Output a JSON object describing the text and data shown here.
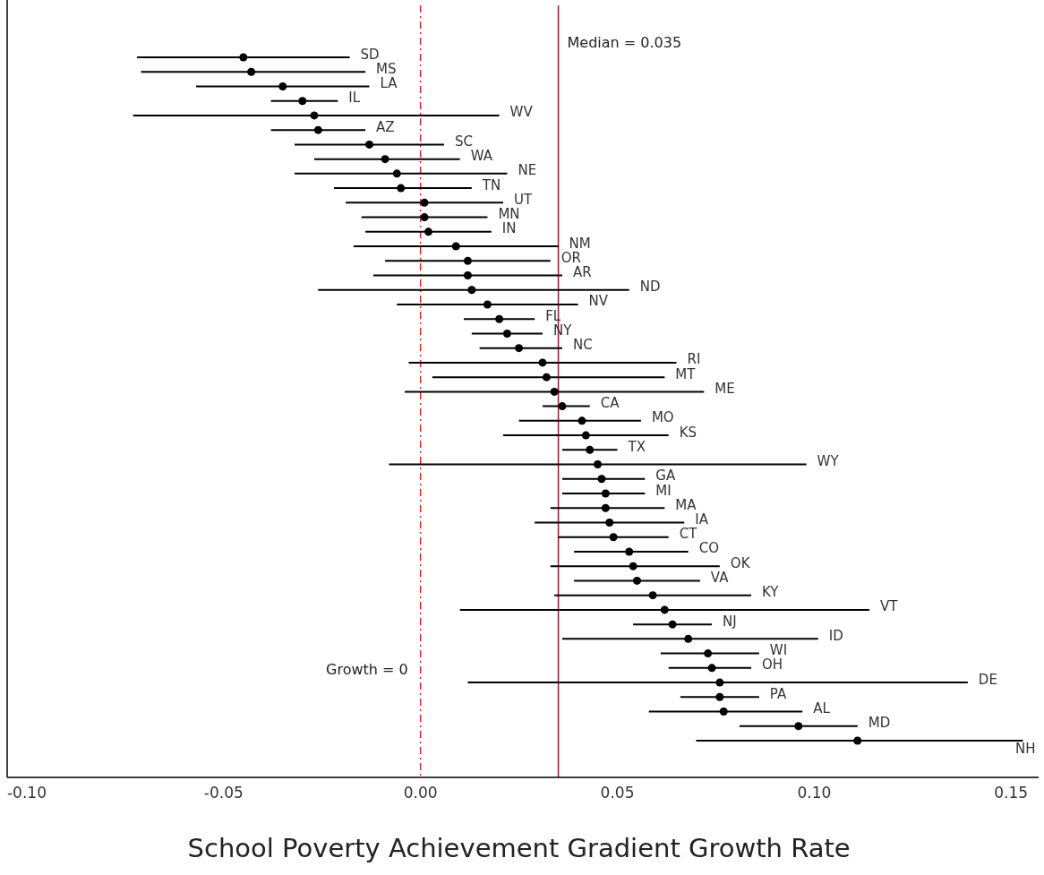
{
  "chart_data": {
    "type": "scatter",
    "orientation": "horizontal",
    "xlabel": "School Poverty Achievement Gradient Growth Rate",
    "categories": [
      "SD",
      "MS",
      "LA",
      "IL",
      "WV",
      "AZ",
      "SC",
      "WA",
      "NE",
      "TN",
      "UT",
      "MN",
      "IN",
      "NM",
      "OR",
      "AR",
      "ND",
      "NV",
      "FL",
      "NY",
      "NC",
      "RI",
      "MT",
      "ME",
      "CA",
      "MO",
      "KS",
      "TX",
      "WY",
      "GA",
      "MI",
      "MA",
      "IA",
      "CT",
      "CO",
      "OK",
      "VA",
      "KY",
      "VT",
      "NJ",
      "ID",
      "WI",
      "OH",
      "DE",
      "PA",
      "AL",
      "MD",
      "NH"
    ],
    "values": [
      -0.045,
      -0.043,
      -0.035,
      -0.03,
      -0.027,
      -0.026,
      -0.013,
      -0.009,
      -0.006,
      -0.005,
      0.001,
      0.001,
      0.002,
      0.009,
      0.012,
      0.012,
      0.013,
      0.017,
      0.02,
      0.022,
      0.025,
      0.031,
      0.032,
      0.034,
      0.036,
      0.041,
      0.042,
      0.043,
      0.045,
      0.046,
      0.047,
      0.047,
      0.048,
      0.049,
      0.053,
      0.054,
      0.055,
      0.059,
      0.062,
      0.064,
      0.068,
      0.073,
      0.074,
      0.076,
      0.076,
      0.077,
      0.096,
      0.111
    ],
    "errors": [
      [
        -0.072,
        -0.018
      ],
      [
        -0.071,
        -0.014
      ],
      [
        -0.057,
        -0.013
      ],
      [
        -0.038,
        -0.021
      ],
      [
        -0.073,
        0.02
      ],
      [
        -0.038,
        -0.014
      ],
      [
        -0.032,
        0.006
      ],
      [
        -0.027,
        0.01
      ],
      [
        -0.032,
        0.022
      ],
      [
        -0.022,
        0.013
      ],
      [
        -0.019,
        0.021
      ],
      [
        -0.015,
        0.017
      ],
      [
        -0.014,
        0.018
      ],
      [
        -0.017,
        0.035
      ],
      [
        -0.009,
        0.033
      ],
      [
        -0.012,
        0.036
      ],
      [
        -0.026,
        0.053
      ],
      [
        -0.006,
        0.04
      ],
      [
        0.011,
        0.029
      ],
      [
        0.013,
        0.031
      ],
      [
        0.015,
        0.036
      ],
      [
        -0.003,
        0.065
      ],
      [
        0.003,
        0.062
      ],
      [
        -0.004,
        0.072
      ],
      [
        0.031,
        0.043
      ],
      [
        0.025,
        0.056
      ],
      [
        0.021,
        0.063
      ],
      [
        0.036,
        0.05
      ],
      [
        -0.008,
        0.098
      ],
      [
        0.036,
        0.057
      ],
      [
        0.036,
        0.057
      ],
      [
        0.033,
        0.062
      ],
      [
        0.029,
        0.067
      ],
      [
        0.035,
        0.063
      ],
      [
        0.039,
        0.068
      ],
      [
        0.033,
        0.076
      ],
      [
        0.039,
        0.071
      ],
      [
        0.034,
        0.084
      ],
      [
        0.01,
        0.114
      ],
      [
        0.054,
        0.074
      ],
      [
        0.036,
        0.101
      ],
      [
        0.061,
        0.086
      ],
      [
        0.063,
        0.084
      ],
      [
        0.012,
        0.139
      ],
      [
        0.066,
        0.086
      ],
      [
        0.058,
        0.097
      ],
      [
        0.081,
        0.111
      ],
      [
        0.07,
        0.153
      ]
    ],
    "color": "#000000",
    "marker": "circle",
    "xlim": [
      -0.105,
      0.157
    ],
    "xticks": [
      {
        "value": -0.1,
        "label": "-0.10"
      },
      {
        "value": -0.05,
        "label": "-0.05"
      },
      {
        "value": 0,
        "label": "0.00"
      },
      {
        "value": 0.05,
        "label": "0.05"
      },
      {
        "value": 0.1,
        "label": "0.10"
      },
      {
        "value": 0.15,
        "label": "0.15"
      }
    ],
    "tick_labels": "x",
    "grid": false,
    "ref_lines": [
      {
        "axis": "x",
        "value": 0,
        "label": "Growth = 0",
        "color": "#d62728",
        "line_style": "dashed"
      },
      {
        "axis": "x",
        "value": 0.035,
        "label": "Median =  0.035",
        "color": "#a01c24",
        "line_style": "solid"
      }
    ]
  }
}
